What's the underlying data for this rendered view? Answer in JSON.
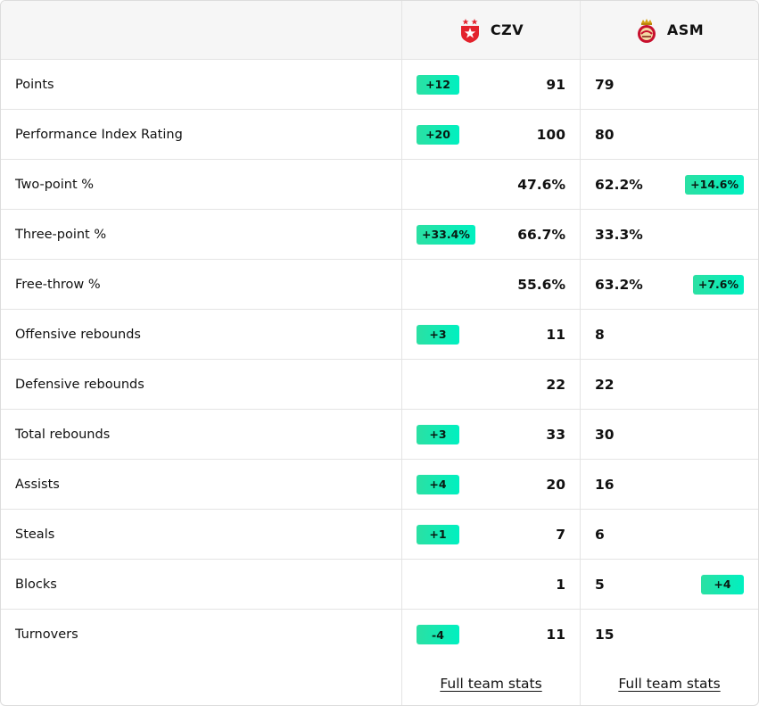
{
  "teams": {
    "home": {
      "code": "CZV",
      "logo_icon": "red-star-shield-icon",
      "color": "#e3222c"
    },
    "away": {
      "code": "ASM",
      "logo_icon": "monaco-crest-icon",
      "color": "#c8102e"
    }
  },
  "badge_colors": [
    "#2be0a3",
    "#00f0c0"
  ],
  "stats": [
    {
      "label": "Points",
      "home": "91",
      "away": "79",
      "home_diff": "+12",
      "away_diff": null
    },
    {
      "label": "Performance Index Rating",
      "home": "100",
      "away": "80",
      "home_diff": "+20",
      "away_diff": null
    },
    {
      "label": "Two-point %",
      "home": "47.6%",
      "away": "62.2%",
      "home_diff": null,
      "away_diff": "+14.6%"
    },
    {
      "label": "Three-point %",
      "home": "66.7%",
      "away": "33.3%",
      "home_diff": "+33.4%",
      "away_diff": null
    },
    {
      "label": "Free-throw %",
      "home": "55.6%",
      "away": "63.2%",
      "home_diff": null,
      "away_diff": "+7.6%"
    },
    {
      "label": "Offensive rebounds",
      "home": "11",
      "away": "8",
      "home_diff": "+3",
      "away_diff": null
    },
    {
      "label": "Defensive rebounds",
      "home": "22",
      "away": "22",
      "home_diff": null,
      "away_diff": null
    },
    {
      "label": "Total rebounds",
      "home": "33",
      "away": "30",
      "home_diff": "+3",
      "away_diff": null
    },
    {
      "label": "Assists",
      "home": "20",
      "away": "16",
      "home_diff": "+4",
      "away_diff": null
    },
    {
      "label": "Steals",
      "home": "7",
      "away": "6",
      "home_diff": "+1",
      "away_diff": null
    },
    {
      "label": "Blocks",
      "home": "1",
      "away": "5",
      "home_diff": null,
      "away_diff": "+4"
    },
    {
      "label": "Turnovers",
      "home": "11",
      "away": "15",
      "home_diff": "-4",
      "away_diff": null
    }
  ],
  "footer": {
    "home_link": "Full team stats",
    "away_link": "Full team stats"
  }
}
